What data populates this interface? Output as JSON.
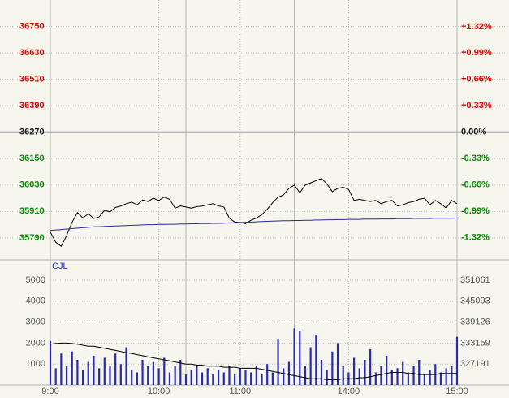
{
  "chart_data": [
    {
      "type": "line",
      "prev_close": 36270,
      "up_color": "#e00000",
      "down_color": "#009000",
      "flat_color": "#202020",
      "ylim": [
        35690,
        36870
      ],
      "yticks": [
        36750,
        36630,
        36510,
        36390,
        36270,
        36150,
        36030,
        35910,
        35790
      ],
      "y2lim": [
        -1.599,
        1.654
      ],
      "y2ticks": [
        {
          "value": 1.32,
          "label": "+1.32%"
        },
        {
          "value": 0.99,
          "label": "+0.99%"
        },
        {
          "value": 0.66,
          "label": "+0.66%"
        },
        {
          "value": 0.33,
          "label": "+0.33%"
        },
        {
          "value": 0,
          "label": "0.00%"
        },
        {
          "value": -0.33,
          "label": "-0.33%"
        },
        {
          "value": -0.66,
          "label": "-0.66%"
        },
        {
          "value": -0.99,
          "label": "-0.99%"
        },
        {
          "value": -1.32,
          "label": "-1.32%"
        }
      ],
      "xlim": [
        0,
        225
      ],
      "session_breaks": [
        75,
        135
      ],
      "x": [
        0,
        3,
        6,
        9,
        12,
        15,
        18,
        21,
        24,
        27,
        30,
        33,
        36,
        39,
        42,
        45,
        48,
        51,
        54,
        57,
        60,
        63,
        66,
        69,
        72,
        75,
        78,
        81,
        84,
        87,
        90,
        93,
        96,
        99,
        102,
        105,
        108,
        111,
        114,
        117,
        120,
        123,
        126,
        129,
        132,
        135,
        138,
        141,
        144,
        147,
        150,
        153,
        156,
        159,
        162,
        165,
        168,
        171,
        174,
        177,
        180,
        183,
        186,
        189,
        192,
        195,
        198,
        201,
        204,
        207,
        210,
        213,
        216,
        219,
        222,
        225
      ],
      "series": [
        {
          "color": "#000000",
          "values": [
            35816,
            35770,
            35752,
            35800,
            35860,
            35905,
            35880,
            35900,
            35878,
            35885,
            35915,
            35908,
            35928,
            35935,
            35945,
            35952,
            35940,
            35962,
            35955,
            35970,
            35960,
            35975,
            35965,
            35925,
            35935,
            35930,
            35925,
            35932,
            35935,
            35940,
            35945,
            35935,
            35930,
            35880,
            35862,
            35860,
            35855,
            35870,
            35880,
            35895,
            35920,
            35950,
            35975,
            35985,
            36015,
            36030,
            35995,
            36030,
            36040,
            36050,
            36060,
            36035,
            36000,
            36015,
            36020,
            36010,
            35960,
            35965,
            35960,
            35955,
            35960,
            35945,
            35955,
            35960,
            35935,
            35940,
            35950,
            35955,
            35965,
            35970,
            35940,
            35960,
            35945,
            35925,
            35960,
            35945
          ]
        },
        {
          "color": "#2a2a9a",
          "values": [
            35824,
            35826,
            35828,
            35830,
            35832,
            35834,
            35836,
            35838,
            35840,
            35841,
            35842,
            35843,
            35844,
            35845,
            35846,
            35847,
            35848,
            35849,
            35850,
            35850,
            35851,
            35851,
            35852,
            35852,
            35853,
            35853,
            35854,
            35854,
            35855,
            35855,
            35856,
            35856,
            35857,
            35858,
            35859,
            35860,
            35861,
            35862,
            35863,
            35864,
            35865,
            35866,
            35867,
            35868,
            35868,
            35869,
            35869,
            35870,
            35870,
            35871,
            35871,
            35872,
            35872,
            35873,
            35873,
            35874,
            35874,
            35874,
            35875,
            35875,
            35875,
            35876,
            35876,
            35876,
            35877,
            35877,
            35877,
            35878,
            35878,
            35878,
            35878,
            35879,
            35879,
            35879,
            35879,
            35880
          ]
        }
      ]
    },
    {
      "type": "bar",
      "ylim": [
        0,
        5890
      ],
      "yticks": [
        5000,
        4000,
        3000,
        2000,
        1000
      ],
      "y2lim": [
        321224,
        356372
      ],
      "y2ticks": [
        351061,
        345093,
        339126,
        333159,
        327191
      ],
      "xlim": [
        0,
        225
      ],
      "xticks": [
        {
          "value": 0,
          "label": "9:00"
        },
        {
          "value": 60,
          "label": "10:00"
        },
        {
          "value": 105,
          "label": "11:00"
        },
        {
          "value": 165,
          "label": "14:00"
        },
        {
          "value": 225,
          "label": "15:00"
        }
      ],
      "x": [
        0,
        3,
        6,
        9,
        12,
        15,
        18,
        21,
        24,
        27,
        30,
        33,
        36,
        39,
        42,
        45,
        48,
        51,
        54,
        57,
        60,
        63,
        66,
        69,
        72,
        75,
        78,
        81,
        84,
        87,
        90,
        93,
        96,
        99,
        102,
        105,
        108,
        111,
        114,
        117,
        120,
        123,
        126,
        129,
        132,
        135,
        138,
        141,
        144,
        147,
        150,
        153,
        156,
        159,
        162,
        165,
        168,
        171,
        174,
        177,
        180,
        183,
        186,
        189,
        192,
        195,
        198,
        201,
        204,
        207,
        210,
        213,
        216,
        219,
        222,
        225
      ],
      "series": [
        {
          "name": "CJL",
          "color": "#2a2ab0",
          "values": [
            2100,
            800,
            1500,
            900,
            1600,
            1200,
            700,
            1100,
            1400,
            800,
            1300,
            900,
            1500,
            1000,
            1800,
            700,
            600,
            1200,
            900,
            1100,
            800,
            1300,
            600,
            900,
            1200,
            500,
            700,
            900,
            600,
            800,
            500,
            700,
            600,
            900,
            500,
            800,
            700,
            600,
            900,
            500,
            1000,
            600,
            2200,
            800,
            1100,
            2700,
            2600,
            900,
            1800,
            2400,
            1200,
            700,
            1600,
            2000,
            900,
            600,
            1300,
            800,
            1200,
            1700,
            600,
            900,
            1400,
            700,
            800,
            1100,
            600,
            900,
            1200,
            500,
            700,
            1000,
            600,
            800,
            900,
            2300
          ]
        },
        {
          "color": "#000000",
          "values": [
            1950,
            1980,
            2000,
            2000,
            1980,
            1950,
            1900,
            1850,
            1850,
            1800,
            1750,
            1700,
            1650,
            1600,
            1550,
            1500,
            1450,
            1400,
            1350,
            1300,
            1250,
            1200,
            1150,
            1100,
            1050,
            1000,
            1000,
            950,
            950,
            900,
            900,
            900,
            850,
            850,
            850,
            800,
            800,
            800,
            800,
            750,
            700,
            650,
            600,
            550,
            500,
            450,
            400,
            350,
            300,
            300,
            300,
            250,
            250,
            250,
            300,
            300,
            300,
            350,
            350,
            400,
            450,
            500,
            550,
            600,
            600,
            600,
            550,
            550,
            500,
            500,
            500,
            500,
            550,
            550,
            550,
            550
          ]
        }
      ]
    }
  ]
}
